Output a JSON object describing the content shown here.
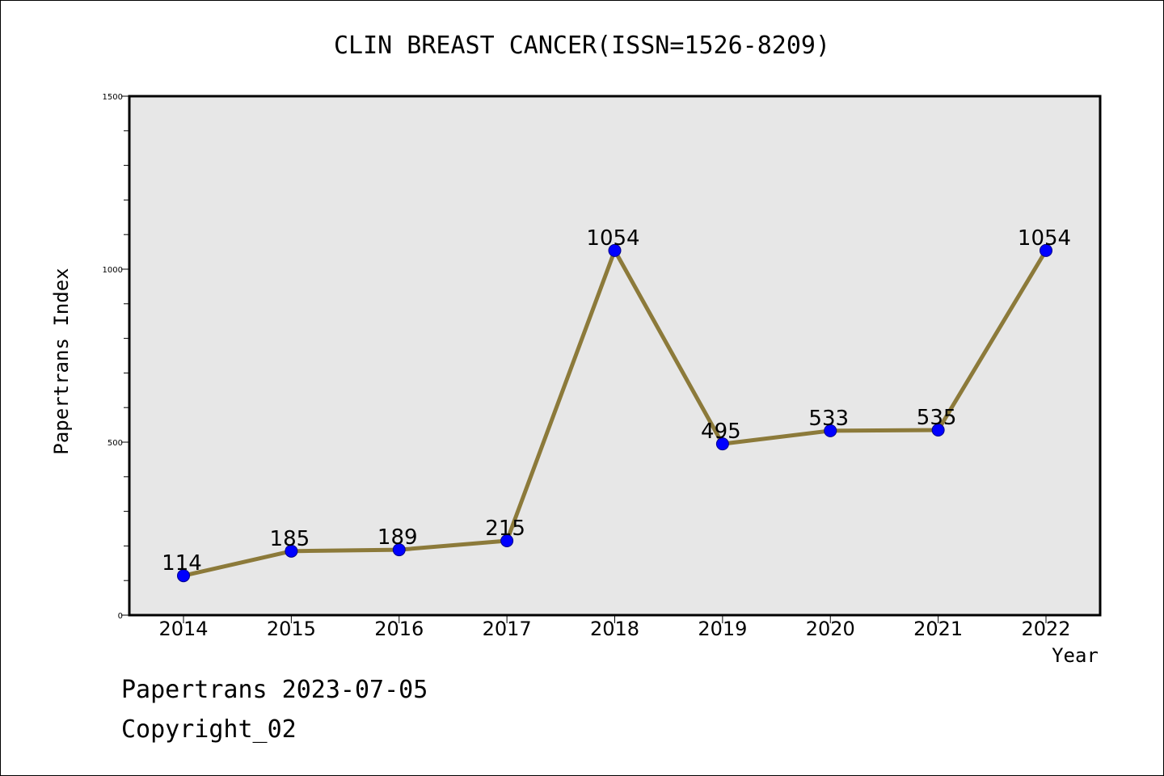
{
  "colors": {
    "plot_background": "#e7e7e7",
    "line": "#8c7a3a",
    "marker": "#0000ff",
    "marker_edge": "#00008b",
    "axis": "#000000"
  },
  "footer": {
    "date_text": "Papertrans 2023-07-05",
    "copyright_text": "Copyright_02"
  },
  "chart_data": {
    "type": "line",
    "title": "CLIN BREAST CANCER(ISSN=1526-8209)",
    "xlabel": "Year",
    "ylabel": "Papertrans Index",
    "categories": [
      "2014",
      "2015",
      "2016",
      "2017",
      "2018",
      "2019",
      "2020",
      "2021",
      "2022"
    ],
    "series": [
      {
        "values": [
          114,
          185,
          189,
          215,
          1054,
          495,
          533,
          535,
          1054
        ]
      }
    ],
    "data_labels": [
      "114",
      "185",
      "189",
      "215",
      "1054",
      "495",
      "533",
      "535",
      "1054"
    ],
    "ylim": [
      0,
      1500
    ],
    "yticks_major": [
      0,
      500,
      1000,
      1500
    ],
    "yticks_minor_step": 100,
    "grid": false,
    "legend": "none"
  }
}
